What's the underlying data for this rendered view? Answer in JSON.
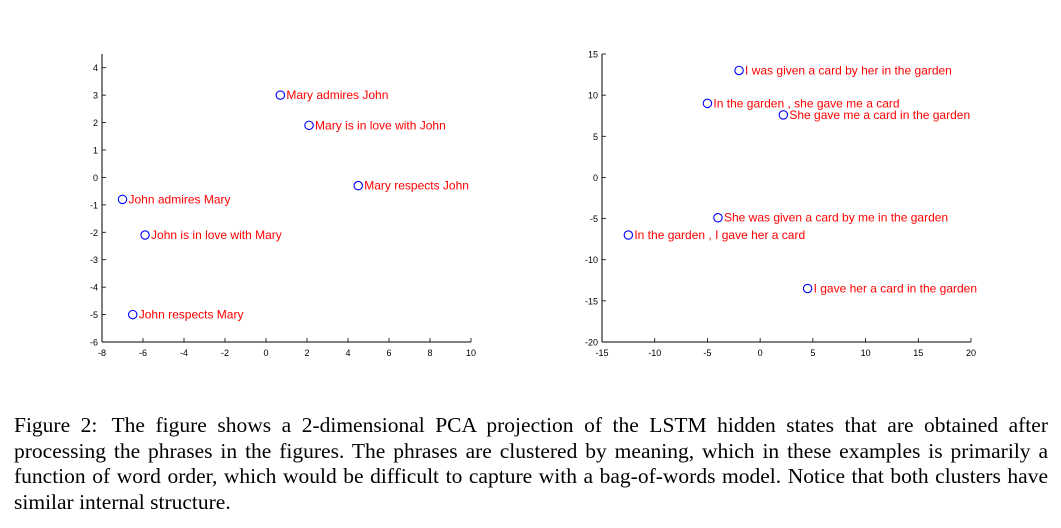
{
  "chart_data": [
    {
      "type": "scatter",
      "title": "",
      "xlabel": "",
      "ylabel": "",
      "xlim": [
        -8,
        10
      ],
      "ylim": [
        -6,
        4.5
      ],
      "xticks": [
        "-8",
        "-6",
        "-4",
        "-2",
        "0",
        "2",
        "4",
        "6",
        "8",
        "10"
      ],
      "yticks": [
        "-6",
        "-5",
        "-4",
        "-3",
        "-2",
        "-1",
        "0",
        "1",
        "2",
        "3",
        "4"
      ],
      "marker_color": "#0000ff",
      "label_color": "#ff0000",
      "points": [
        {
          "label": "Mary admires John",
          "x": 0.7,
          "y": 3.0
        },
        {
          "label": "Mary is in love with John",
          "x": 2.1,
          "y": 1.9
        },
        {
          "label": "Mary respects John",
          "x": 4.5,
          "y": -0.3
        },
        {
          "label": "John admires Mary",
          "x": -7.0,
          "y": -0.8
        },
        {
          "label": "John is in love with Mary",
          "x": -5.9,
          "y": -2.1
        },
        {
          "label": "John respects Mary",
          "x": -6.5,
          "y": -5.0
        }
      ]
    },
    {
      "type": "scatter",
      "title": "",
      "xlabel": "",
      "ylabel": "",
      "xlim": [
        -15,
        20
      ],
      "ylim": [
        -20,
        15
      ],
      "xticks": [
        "-15",
        "-10",
        "-5",
        "0",
        "5",
        "10",
        "15",
        "20"
      ],
      "yticks": [
        "-20",
        "-15",
        "-10",
        "-5",
        "0",
        "5",
        "10",
        "15"
      ],
      "marker_color": "#0000ff",
      "label_color": "#ff0000",
      "points": [
        {
          "label": "I was given a card by her in the garden",
          "x": -2.0,
          "y": 13.0
        },
        {
          "label": "In the garden , she gave me a card",
          "x": -5.0,
          "y": 9.0
        },
        {
          "label": "She gave me a card in the garden",
          "x": 2.2,
          "y": 7.6
        },
        {
          "label": "She was given a card by me in the garden",
          "x": -4.0,
          "y": -4.9
        },
        {
          "label": "In the garden , I gave her a card",
          "x": -12.5,
          "y": -7.0
        },
        {
          "label": "I gave her a card in the garden",
          "x": 4.5,
          "y": -13.5
        }
      ]
    }
  ],
  "caption": {
    "label": "Figure 2:",
    "text": "The figure shows a 2-dimensional PCA projection of the LSTM hidden states that are obtained after processing the phrases in the figures. The phrases are clustered by meaning, which in these examples is primarily a function of word order, which would be difficult to capture with a bag-of-words model. Notice that both clusters have similar internal structure."
  }
}
